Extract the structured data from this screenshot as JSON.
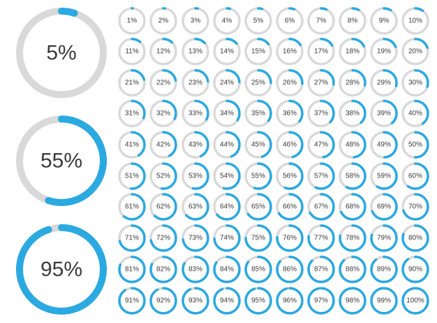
{
  "colors": {
    "track": "#d9d9d9",
    "progress": "#2ba9e1",
    "text": "#3a3a3a",
    "background": "#ffffff"
  },
  "large_indicators": [
    {
      "value": 5,
      "label": "5%"
    },
    {
      "value": 55,
      "label": "55%"
    },
    {
      "value": 95,
      "label": "95%"
    }
  ],
  "small_indicators": [
    {
      "value": 1,
      "label": "1%"
    },
    {
      "value": 2,
      "label": "2%"
    },
    {
      "value": 3,
      "label": "3%"
    },
    {
      "value": 4,
      "label": "4%"
    },
    {
      "value": 5,
      "label": "5%"
    },
    {
      "value": 6,
      "label": "6%"
    },
    {
      "value": 7,
      "label": "7%"
    },
    {
      "value": 8,
      "label": "8%"
    },
    {
      "value": 9,
      "label": "9%"
    },
    {
      "value": 10,
      "label": "10%"
    },
    {
      "value": 11,
      "label": "11%"
    },
    {
      "value": 12,
      "label": "12%"
    },
    {
      "value": 13,
      "label": "13%"
    },
    {
      "value": 14,
      "label": "14%"
    },
    {
      "value": 15,
      "label": "15%"
    },
    {
      "value": 16,
      "label": "16%"
    },
    {
      "value": 17,
      "label": "17%"
    },
    {
      "value": 18,
      "label": "18%"
    },
    {
      "value": 19,
      "label": "19%"
    },
    {
      "value": 20,
      "label": "20%"
    },
    {
      "value": 21,
      "label": "21%"
    },
    {
      "value": 22,
      "label": "22%"
    },
    {
      "value": 23,
      "label": "23%"
    },
    {
      "value": 24,
      "label": "24%"
    },
    {
      "value": 25,
      "label": "25%"
    },
    {
      "value": 26,
      "label": "26%"
    },
    {
      "value": 27,
      "label": "27%"
    },
    {
      "value": 28,
      "label": "28%"
    },
    {
      "value": 29,
      "label": "29%"
    },
    {
      "value": 30,
      "label": "30%"
    },
    {
      "value": 31,
      "label": "31%"
    },
    {
      "value": 32,
      "label": "32%"
    },
    {
      "value": 33,
      "label": "33%"
    },
    {
      "value": 34,
      "label": "34%"
    },
    {
      "value": 35,
      "label": "35%"
    },
    {
      "value": 36,
      "label": "36%"
    },
    {
      "value": 37,
      "label": "37%"
    },
    {
      "value": 38,
      "label": "38%"
    },
    {
      "value": 39,
      "label": "39%"
    },
    {
      "value": 40,
      "label": "40%"
    },
    {
      "value": 41,
      "label": "41%"
    },
    {
      "value": 42,
      "label": "42%"
    },
    {
      "value": 43,
      "label": "43%"
    },
    {
      "value": 44,
      "label": "44%"
    },
    {
      "value": 45,
      "label": "45%"
    },
    {
      "value": 46,
      "label": "46%"
    },
    {
      "value": 47,
      "label": "47%"
    },
    {
      "value": 48,
      "label": "48%"
    },
    {
      "value": 49,
      "label": "49%"
    },
    {
      "value": 50,
      "label": "50%"
    },
    {
      "value": 51,
      "label": "51%"
    },
    {
      "value": 52,
      "label": "52%"
    },
    {
      "value": 53,
      "label": "53%"
    },
    {
      "value": 54,
      "label": "54%"
    },
    {
      "value": 55,
      "label": "55%"
    },
    {
      "value": 56,
      "label": "56%"
    },
    {
      "value": 57,
      "label": "57%"
    },
    {
      "value": 58,
      "label": "58%"
    },
    {
      "value": 59,
      "label": "59%"
    },
    {
      "value": 60,
      "label": "60%"
    },
    {
      "value": 61,
      "label": "61%"
    },
    {
      "value": 62,
      "label": "62%"
    },
    {
      "value": 63,
      "label": "63%"
    },
    {
      "value": 64,
      "label": "64%"
    },
    {
      "value": 65,
      "label": "65%"
    },
    {
      "value": 66,
      "label": "66%"
    },
    {
      "value": 67,
      "label": "67%"
    },
    {
      "value": 68,
      "label": "68%"
    },
    {
      "value": 69,
      "label": "69%"
    },
    {
      "value": 70,
      "label": "70%"
    },
    {
      "value": 71,
      "label": "71%"
    },
    {
      "value": 72,
      "label": "72%"
    },
    {
      "value": 73,
      "label": "73%"
    },
    {
      "value": 74,
      "label": "74%"
    },
    {
      "value": 75,
      "label": "75%"
    },
    {
      "value": 76,
      "label": "76%"
    },
    {
      "value": 77,
      "label": "77%"
    },
    {
      "value": 78,
      "label": "78%"
    },
    {
      "value": 79,
      "label": "79%"
    },
    {
      "value": 80,
      "label": "80%"
    },
    {
      "value": 81,
      "label": "81%"
    },
    {
      "value": 82,
      "label": "82%"
    },
    {
      "value": 83,
      "label": "83%"
    },
    {
      "value": 84,
      "label": "84%"
    },
    {
      "value": 85,
      "label": "85%"
    },
    {
      "value": 86,
      "label": "86%"
    },
    {
      "value": 87,
      "label": "87%"
    },
    {
      "value": 88,
      "label": "88%"
    },
    {
      "value": 89,
      "label": "89%"
    },
    {
      "value": 90,
      "label": "90%"
    },
    {
      "value": 91,
      "label": "91%"
    },
    {
      "value": 92,
      "label": "92%"
    },
    {
      "value": 93,
      "label": "93%"
    },
    {
      "value": 94,
      "label": "94%"
    },
    {
      "value": 95,
      "label": "95%"
    },
    {
      "value": 96,
      "label": "96%"
    },
    {
      "value": 97,
      "label": "97%"
    },
    {
      "value": 98,
      "label": "98%"
    },
    {
      "value": 99,
      "label": "99%"
    },
    {
      "value": 100,
      "label": "100%"
    }
  ]
}
